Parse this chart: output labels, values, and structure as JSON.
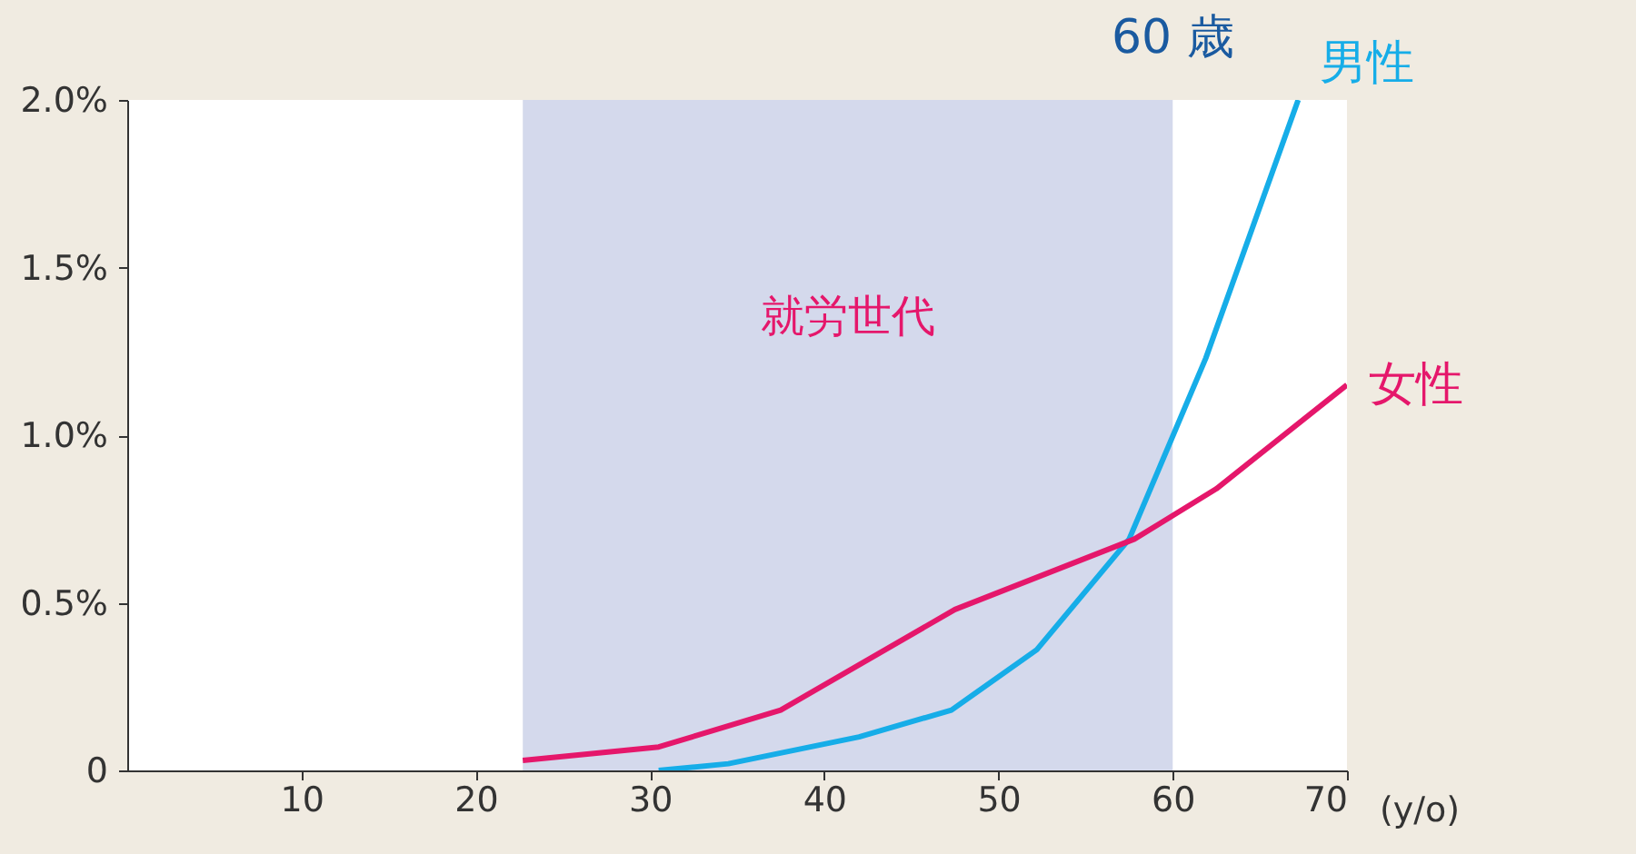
{
  "chart_data": {
    "type": "line",
    "x": [
      22.7,
      30.5,
      37.5,
      47.5,
      57.8,
      62.5,
      70
    ],
    "series": [
      {
        "name": "男性",
        "color": "#16ade8",
        "x": [
          30.5,
          34.5,
          42,
          47.3,
          52.2,
          57.5,
          61.9,
          67.2
        ],
        "values": [
          0,
          0.02,
          0.1,
          0.18,
          0.36,
          0.69,
          1.23,
          2.0
        ]
      },
      {
        "name": "女性",
        "color": "#e5176b",
        "values": [
          0.03,
          0.07,
          0.18,
          0.48,
          0.69,
          0.84,
          1.15
        ]
      }
    ],
    "xlim": [
      0,
      70
    ],
    "xticks": [
      10,
      20,
      30,
      40,
      50,
      60,
      70
    ],
    "xlabel": "(y/o)",
    "ylim": [
      0,
      2.0
    ],
    "yticks": [
      {
        "value": 0,
        "label": "0"
      },
      {
        "value": 0.5,
        "label": "0.5%"
      },
      {
        "value": 1.0,
        "label": "1.0%"
      },
      {
        "value": 1.5,
        "label": "1.5%"
      },
      {
        "value": 2.0,
        "label": "2.0%"
      }
    ],
    "bands": [
      {
        "axis": "x",
        "from": 22.7,
        "to": 60,
        "label": "就労世代",
        "color": "#d4d9ec"
      }
    ],
    "annotations": [
      {
        "text": "60 歳",
        "x": 60,
        "y": 2.0
      }
    ],
    "grid": false,
    "legend": false,
    "marker": "none",
    "line_style": "solid"
  }
}
